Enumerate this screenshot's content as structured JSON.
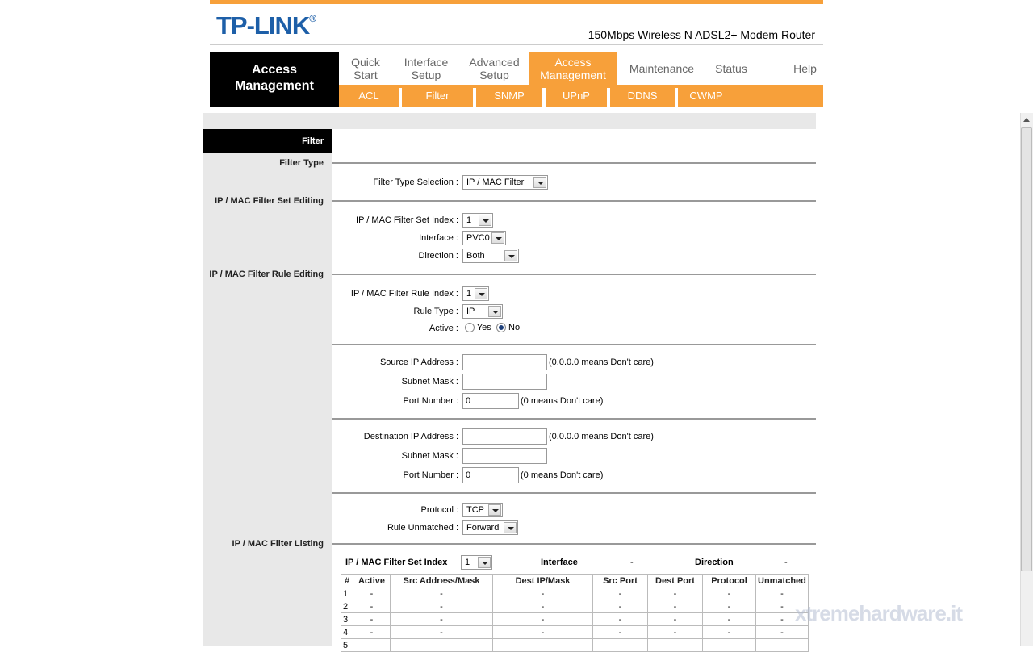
{
  "header": {
    "brand": "TP-LINK",
    "model": "150Mbps Wireless N ADSL2+ Modem Router",
    "colors": {
      "accent": "#f7a03a",
      "brand": "#1d5fa8"
    }
  },
  "nav": {
    "section_title": "Access Management",
    "tabs": [
      {
        "line1": "Quick",
        "line2": "Start"
      },
      {
        "line1": "Interface",
        "line2": "Setup"
      },
      {
        "line1": "Advanced",
        "line2": "Setup"
      },
      {
        "line1": "Access",
        "line2": "Management",
        "active": true
      },
      {
        "line1": "Maintenance"
      },
      {
        "line1": "Status"
      },
      {
        "line1": "Help"
      }
    ],
    "subtabs": [
      "ACL",
      "Filter",
      "SNMP",
      "UPnP",
      "DDNS",
      "CWMP"
    ]
  },
  "sidebar": {
    "title": "Filter",
    "sections": [
      "Filter Type",
      "IP / MAC Filter Set Editing",
      "IP / MAC Filter Rule Editing",
      "IP / MAC Filter Listing"
    ]
  },
  "form": {
    "filter_type": {
      "label": "Filter Type Selection :",
      "value": "IP / MAC Filter"
    },
    "set_index": {
      "label": "IP / MAC Filter Set Index :",
      "value": "1"
    },
    "interface": {
      "label": "Interface :",
      "value": "PVC0"
    },
    "direction": {
      "label": "Direction :",
      "value": "Both"
    },
    "rule_index": {
      "label": "IP / MAC Filter Rule Index :",
      "value": "1"
    },
    "rule_type": {
      "label": "Rule Type :",
      "value": "IP"
    },
    "active": {
      "label": "Active :",
      "yes": "Yes",
      "no": "No",
      "selected": "No"
    },
    "src_ip": {
      "label": "Source IP Address :",
      "value": "",
      "hint": "(0.0.0.0 means Don't care)"
    },
    "src_mask": {
      "label": "Subnet Mask :",
      "value": ""
    },
    "src_port": {
      "label": "Port Number :",
      "value": "0",
      "hint": "(0 means Don't care)"
    },
    "dst_ip": {
      "label": "Destination IP Address :",
      "value": "",
      "hint": "(0.0.0.0 means Don't care)"
    },
    "dst_mask": {
      "label": "Subnet Mask :",
      "value": ""
    },
    "dst_port": {
      "label": "Port Number :",
      "value": "0",
      "hint": "(0 means Don't care)"
    },
    "protocol": {
      "label": "Protocol :",
      "value": "TCP"
    },
    "unmatched": {
      "label": "Rule Unmatched :",
      "value": "Forward"
    }
  },
  "listing": {
    "set_index_label": "IP / MAC Filter Set Index",
    "set_index": "1",
    "interface_label": "Interface",
    "interface": "-",
    "direction_label": "Direction",
    "direction": "-",
    "columns": [
      "#",
      "Active",
      "Src Address/Mask",
      "Dest IP/Mask",
      "Src Port",
      "Dest Port",
      "Protocol",
      "Unmatched"
    ],
    "rows": [
      [
        "1",
        "-",
        "-",
        "-",
        "-",
        "-",
        "-",
        "-"
      ],
      [
        "2",
        "-",
        "-",
        "-",
        "-",
        "-",
        "-",
        "-"
      ],
      [
        "3",
        "-",
        "-",
        "-",
        "-",
        "-",
        "-",
        "-"
      ],
      [
        "4",
        "-",
        "-",
        "-",
        "-",
        "-",
        "-",
        "-"
      ],
      [
        "5",
        "",
        "",
        "",
        "",
        "",
        "",
        ""
      ]
    ]
  },
  "watermark": "xtremehardware.it"
}
